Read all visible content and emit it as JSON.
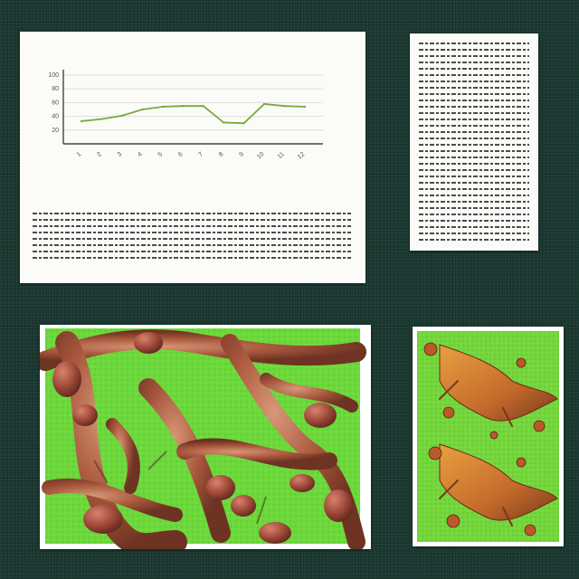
{
  "chart_data": {
    "type": "line",
    "title": "",
    "xlabel": "",
    "ylabel": "",
    "categories": [
      "1",
      "2",
      "3",
      "4",
      "5",
      "6",
      "7",
      "8",
      "9",
      "10",
      "11",
      "12"
    ],
    "series": [
      {
        "values": [
          33,
          36,
          41,
          50,
          54,
          55,
          55,
          31,
          30,
          58,
          55,
          54
        ],
        "color": "#7aaa3c"
      }
    ],
    "ylim": [
      0,
      100
    ],
    "grid": true,
    "legend": "none"
  },
  "colors": {
    "background": "#1d3c34",
    "card": "#fbfbf8",
    "series_line": "#7aaa3c",
    "photo_green": "#6cd83c",
    "photo_brown": "#a0543a"
  }
}
